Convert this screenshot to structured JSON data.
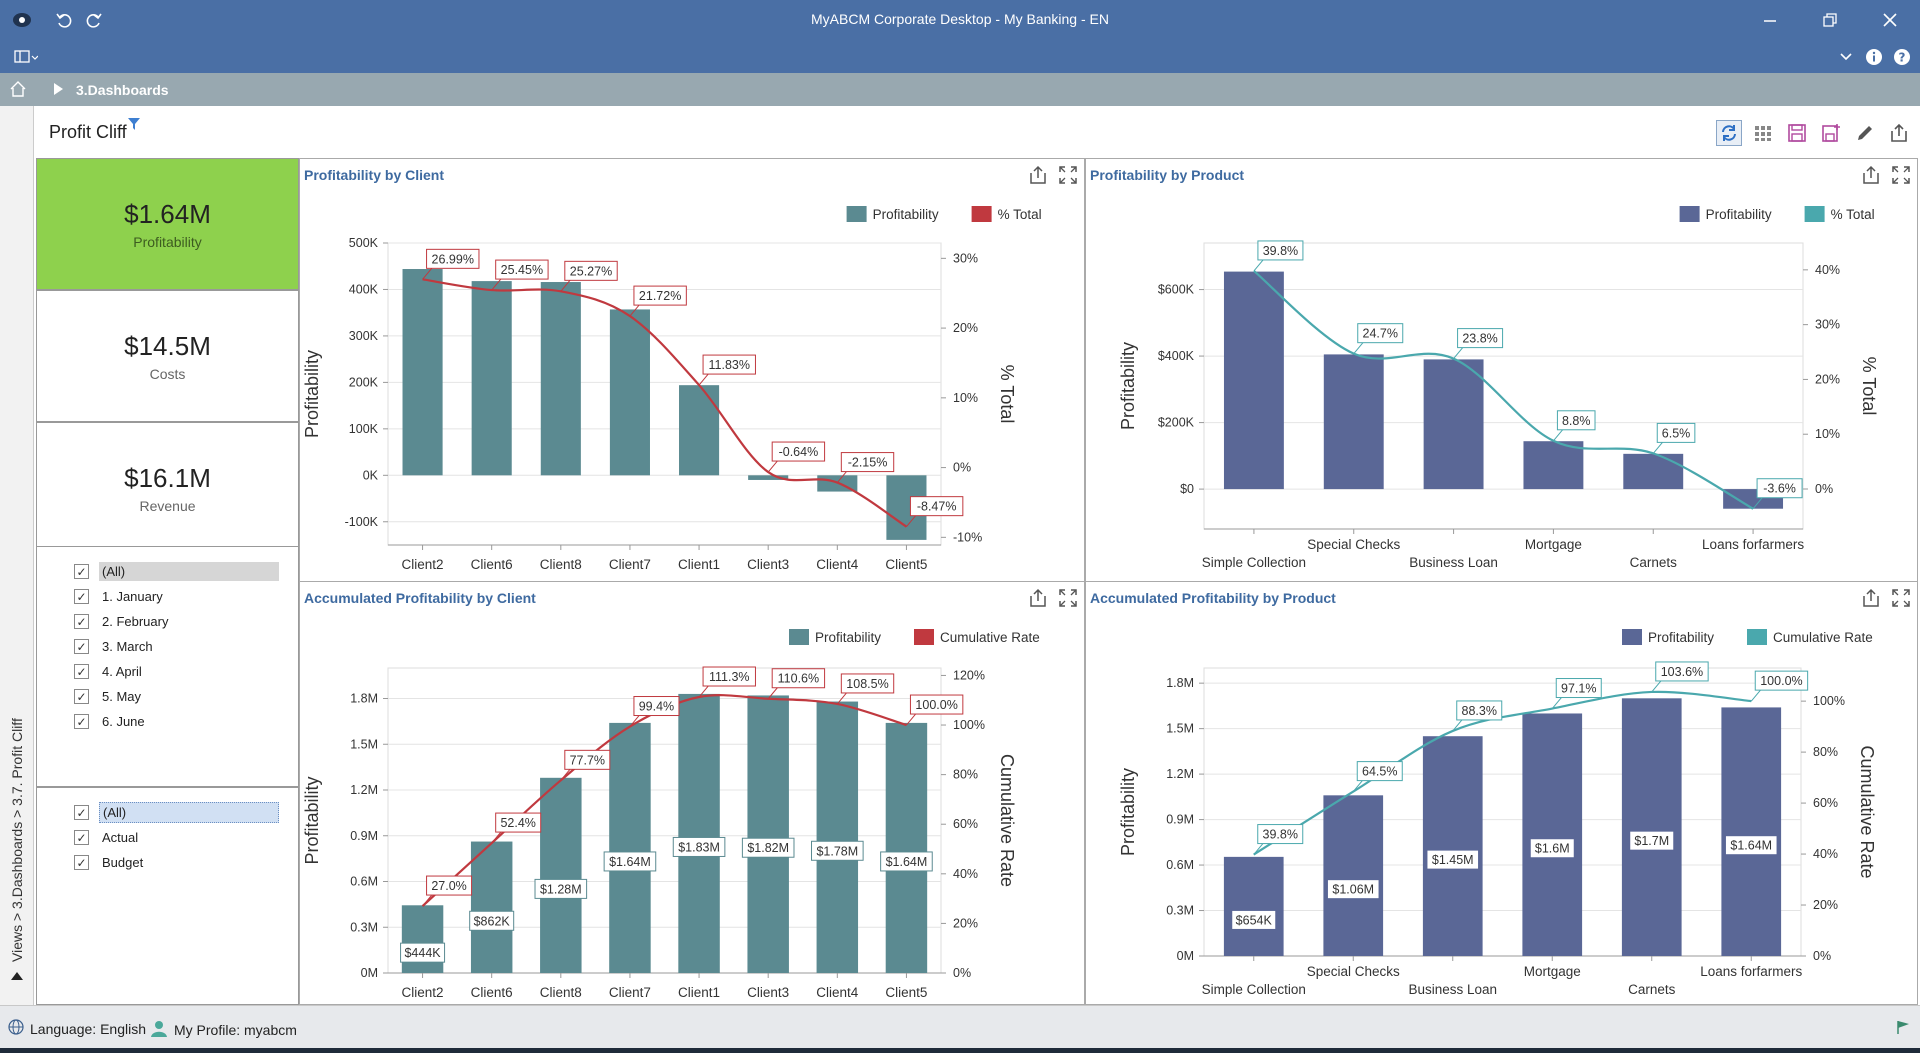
{
  "window": {
    "title": "MyABCM Corporate Desktop - My Banking - EN"
  },
  "breadcrumb": {
    "label": "3.Dashboards"
  },
  "sidebar": {
    "vertical_label": "Views > 3.Dashboards > 3.7. Profit Cliff"
  },
  "page": {
    "title": "Profit Cliff"
  },
  "kpis": [
    {
      "value": "$1.64M",
      "label": "Profitability",
      "color": "#8ed14d"
    },
    {
      "value": "$14.5M",
      "label": "Costs",
      "color": "#ffffff"
    },
    {
      "value": "$16.1M",
      "label": "Revenue",
      "color": "#ffffff"
    }
  ],
  "months_filter": [
    "(All)",
    "1. January",
    "2. February",
    "3. March",
    "4. April",
    "5. May",
    "6. June"
  ],
  "scenario_filter": [
    "(All)",
    "Actual",
    "Budget"
  ],
  "status": {
    "language": "Language: English",
    "profile": "My Profile: myabcm"
  },
  "colors": {
    "client_bar": "#5b8a91",
    "client_line": "#c0393f",
    "product_bar": "#5a6796",
    "product_line": "#4aa8ad",
    "title_bar": "#4a6fa5"
  },
  "chart_data": [
    {
      "type": "bar",
      "title": "Profitability by Client",
      "categories": [
        "Client2",
        "Client6",
        "Client8",
        "Client7",
        "Client1",
        "Client3",
        "Client4",
        "Client5"
      ],
      "series": [
        {
          "name": "Profitability",
          "axis": "left",
          "kind": "bar",
          "values": [
            444000,
            418000,
            416000,
            357000,
            194000,
            -10000,
            -35000,
            -139000
          ]
        },
        {
          "name": "% Total",
          "axis": "right",
          "kind": "line",
          "values": [
            26.99,
            25.45,
            25.27,
            21.72,
            11.83,
            -0.64,
            -2.15,
            -8.47
          ],
          "labels": [
            "26.99%",
            "25.45%",
            "25.27%",
            "21.72%",
            "11.83%",
            "-0.64%",
            "-2.15%",
            "-8.47%"
          ]
        }
      ],
      "ylabel": "Profitability",
      "y2label": "% Total",
      "ylim": [
        -150000,
        500000
      ],
      "yticks": [
        "500K",
        "400K",
        "300K",
        "200K",
        "100K",
        "0K",
        "-100K"
      ],
      "yticks_values": [
        500000,
        400000,
        300000,
        200000,
        100000,
        0,
        -100000
      ],
      "y2lim": [
        -11.1,
        32.2
      ],
      "y2ticks": [
        "30%",
        "20%",
        "10%",
        "0%",
        "-10%"
      ],
      "y2ticks_values": [
        30,
        20,
        10,
        0,
        -10
      ],
      "legend": "top-right",
      "grid": true
    },
    {
      "type": "bar",
      "title": "Profitability by Product",
      "categories": [
        "Simple Collection",
        "Special Checks",
        "Business Loan",
        "Mortgage",
        "Carnets",
        "Loans forfarmers"
      ],
      "series": [
        {
          "name": "Profitability",
          "axis": "left",
          "kind": "bar",
          "values": [
            654000,
            405000,
            390000,
            144000,
            106000,
            -59000
          ]
        },
        {
          "name": "% Total",
          "axis": "right",
          "kind": "line",
          "values": [
            39.8,
            24.7,
            23.8,
            8.8,
            6.5,
            -3.6
          ],
          "labels": [
            "39.8%",
            "24.7%",
            "23.8%",
            "8.8%",
            "6.5%",
            "-3.6%"
          ]
        }
      ],
      "ylabel": "Profitability",
      "y2label": "% Total",
      "ylim": [
        -120000,
        740000
      ],
      "yticks": [
        "$600K",
        "$400K",
        "$200K",
        "$0"
      ],
      "yticks_values": [
        600000,
        400000,
        200000,
        0
      ],
      "y2lim": [
        -7.3,
        44.9
      ],
      "y2ticks": [
        "40%",
        "30%",
        "20%",
        "10%",
        "0%"
      ],
      "y2ticks_values": [
        40,
        30,
        20,
        10,
        0
      ],
      "legend": "top-right",
      "grid": true
    },
    {
      "type": "bar",
      "title": "Accumulated Profitability by Client",
      "categories": [
        "Client2",
        "Client6",
        "Client8",
        "Client7",
        "Client1",
        "Client3",
        "Client4",
        "Client5"
      ],
      "series": [
        {
          "name": "Profitability",
          "axis": "left",
          "kind": "bar",
          "values": [
            444000,
            862000,
            1280000,
            1640000,
            1830000,
            1820000,
            1780000,
            1640000
          ],
          "labels": [
            "$444K",
            "$862K",
            "$1.28M",
            "$1.64M",
            "$1.83M",
            "$1.82M",
            "$1.78M",
            "$1.64M"
          ]
        },
        {
          "name": "Cumulative Rate",
          "axis": "right",
          "kind": "line",
          "values": [
            27.0,
            52.4,
            77.7,
            99.4,
            111.3,
            110.6,
            108.5,
            100.0
          ],
          "labels": [
            "27.0%",
            "52.4%",
            "77.7%",
            "99.4%",
            "111.3%",
            "110.6%",
            "108.5%",
            "100.0%"
          ]
        }
      ],
      "ylabel": "Profitability",
      "y2label": "Cumulative Rate",
      "ylim": [
        0,
        2000000
      ],
      "yticks": [
        "1.8M",
        "1.5M",
        "1.2M",
        "0.9M",
        "0.6M",
        "0.3M",
        "0M"
      ],
      "yticks_values": [
        1800000,
        1500000,
        1200000,
        900000,
        600000,
        300000,
        0
      ],
      "y2lim": [
        0,
        123
      ],
      "y2ticks": [
        "120%",
        "100%",
        "80%",
        "60%",
        "40%",
        "20%",
        "0%"
      ],
      "y2ticks_values": [
        120,
        100,
        80,
        60,
        40,
        20,
        0
      ],
      "legend": "top-right",
      "grid": true
    },
    {
      "type": "bar",
      "title": "Accumulated Profitability by Product",
      "categories": [
        "Simple Collection",
        "Special Checks",
        "Business Loan",
        "Mortgage",
        "Carnets",
        "Loans forfarmers"
      ],
      "series": [
        {
          "name": "Profitability",
          "axis": "left",
          "kind": "bar",
          "values": [
            654000,
            1060000,
            1450000,
            1600000,
            1700000,
            1640000
          ],
          "labels": [
            "$654K",
            "$1.06M",
            "$1.45M",
            "$1.6M",
            "$1.7M",
            "$1.64M"
          ]
        },
        {
          "name": "Cumulative Rate",
          "axis": "right",
          "kind": "line",
          "values": [
            39.8,
            64.5,
            88.3,
            97.1,
            103.6,
            100.0
          ],
          "labels": [
            "39.8%",
            "64.5%",
            "88.3%",
            "97.1%",
            "103.6%",
            "100.0%"
          ]
        }
      ],
      "ylabel": "Profitability",
      "y2label": "Cumulative Rate",
      "ylim": [
        0,
        1900000
      ],
      "yticks": [
        "1.8M",
        "1.5M",
        "1.2M",
        "0.9M",
        "0.6M",
        "0.3M",
        "0M"
      ],
      "yticks_values": [
        1800000,
        1500000,
        1200000,
        900000,
        600000,
        300000,
        0
      ],
      "y2lim": [
        0,
        113
      ],
      "y2ticks": [
        "100%",
        "80%",
        "60%",
        "40%",
        "20%",
        "0%"
      ],
      "y2ticks_values": [
        100,
        80,
        60,
        40,
        20,
        0
      ],
      "legend": "top-right",
      "grid": true
    }
  ]
}
